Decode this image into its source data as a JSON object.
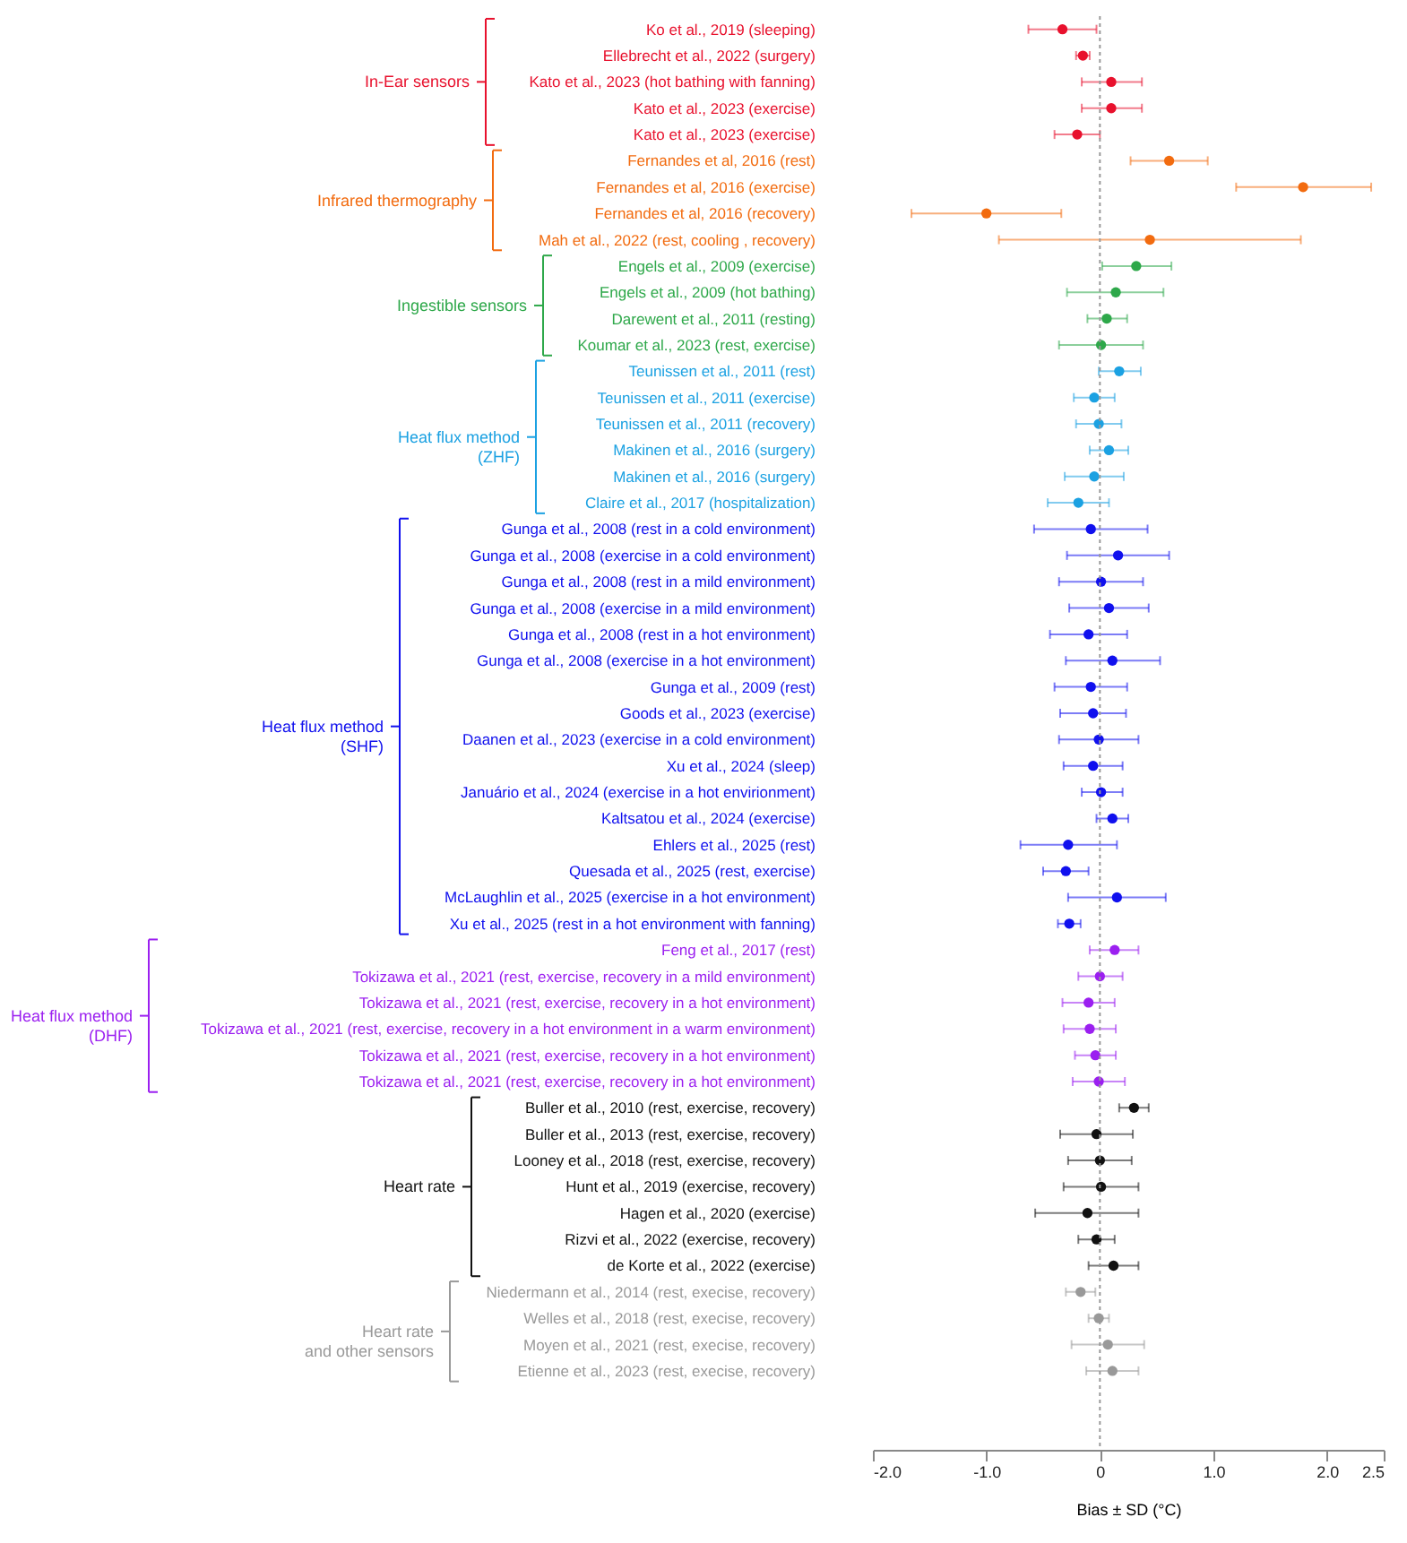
{
  "chart_data": {
    "type": "scatter",
    "orientation": "horizontal",
    "marker": "circle",
    "legend": "left",
    "xlabel": "Bias ± SD (°C)",
    "xlim": [
      -2.0,
      2.5
    ],
    "xticks": [
      {
        "value": -2,
        "label": "-2.0"
      },
      {
        "value": -1,
        "label": "-1.0"
      },
      0,
      {
        "value": 1,
        "label": "1.0"
      },
      {
        "value": 2,
        "label": "2.0"
      },
      2.5
    ],
    "ref_lines": [
      {
        "axis": "x",
        "value": 0,
        "color": "#999999",
        "line_style": "dotted"
      }
    ],
    "categories": [
      "Ko et al., 2019 (sleeping)",
      "Ellebrecht et al., 2022 (surgery)",
      "Kato et al., 2023 (hot bathing with fanning)",
      "Kato et al., 2023 (exercise)",
      "Kato et al., 2023 (exercise)",
      "Fernandes et al, 2016 (rest)",
      "Fernandes et al, 2016 (exercise)",
      "Fernandes et al, 2016 (recovery)",
      "Mah et al., 2022 (rest, cooling , recovery)",
      "Engels et al., 2009 (exercise)",
      "Engels et al., 2009 (hot bathing)",
      "Darewent et al., 2011 (resting)",
      "Koumar et al., 2023 (rest, exercise)",
      "Teunissen et al., 2011 (rest)",
      "Teunissen et al., 2011 (exercise)",
      "Teunissen et al., 2011 (recovery)",
      "Makinen et al., 2016 (surgery)",
      "Makinen et al., 2016 (surgery)",
      "Claire et al., 2017 (hospitalization)",
      "Gunga et al., 2008 (rest in a cold environment)",
      "Gunga et al., 2008 (exercise in a cold environment)",
      "Gunga et al., 2008 (rest in a mild environment)",
      "Gunga et al., 2008 (exercise in a mild environment)",
      "Gunga et al., 2008 (rest in a hot environment)",
      "Gunga et al., 2008 (exercise in a hot environment)",
      "Gunga et al., 2009 (rest)",
      "Goods et al., 2023 (exercise)",
      "Daanen et al., 2023 (exercise in a cold environment)",
      "Xu et al., 2024 (sleep)",
      "Januário et al., 2024 (exercise in a hot envirionment)",
      "Kaltsatou et al., 2024 (exercise)",
      "Ehlers et al., 2025 (rest)",
      "Quesada et al., 2025 (rest, exercise)",
      "McLaughlin et al., 2025 (exercise in a hot environment)",
      "Xu et al., 2025 (rest in a hot environment with fanning)",
      "Feng et al., 2017 (rest)",
      "Tokizawa et al., 2021 (rest, exercise, recovery in a mild environment)",
      "Tokizawa et al., 2021 (rest, exercise, recovery in a hot environment)",
      "Tokizawa et al., 2021 (rest, exercise, recovery in a hot environment in a warm environment)",
      "Tokizawa et al., 2021 (rest, exercise, recovery in a hot environment)",
      "Tokizawa et al., 2021 (rest, exercise, recovery in a hot environment)",
      "Buller et al., 2010 (rest, exercise, recovery)",
      "Buller et al., 2013 (rest, exercise, recovery)",
      "Looney et al., 2018 (rest, exercise, recovery)",
      "Hunt et al., 2019 (exercise, recovery)",
      "Hagen et al., 2020 (exercise)",
      "Rizvi et al., 2022 (exercise, recovery)",
      "de Korte et al., 2022 (exercise)",
      "Niedermann et al., 2014 (rest, execise, recovery)",
      "Welles et al., 2018 (rest, execise, recovery)",
      "Moyen et al., 2021 (rest, execise, recovery)",
      "Etienne et al., 2023 (rest, execise, recovery)"
    ],
    "series": [
      {
        "name": "In-Ear sensors",
        "color": "#e8112d",
        "values": [
          -0.33,
          -0.15,
          0.1,
          0.1,
          -0.2,
          null,
          null,
          null,
          null,
          null,
          null,
          null,
          null,
          null,
          null,
          null,
          null,
          null,
          null,
          null,
          null,
          null,
          null,
          null,
          null,
          null,
          null,
          null,
          null,
          null,
          null,
          null,
          null,
          null,
          null,
          null,
          null,
          null,
          null,
          null,
          null,
          null,
          null,
          null,
          null,
          null,
          null,
          null,
          null,
          null,
          null,
          null
        ],
        "errors": [
          [
            -0.63,
            -0.03
          ],
          [
            -0.21,
            -0.09
          ],
          [
            -0.16,
            0.37
          ],
          [
            -0.16,
            0.37
          ],
          [
            -0.4,
            0.0
          ],
          null,
          null,
          null,
          null,
          null,
          null,
          null,
          null,
          null,
          null,
          null,
          null,
          null,
          null,
          null,
          null,
          null,
          null,
          null,
          null,
          null,
          null,
          null,
          null,
          null,
          null,
          null,
          null,
          null,
          null,
          null,
          null,
          null,
          null,
          null,
          null,
          null,
          null,
          null,
          null,
          null,
          null,
          null,
          null,
          null,
          null,
          null
        ]
      },
      {
        "name": "Infrared thermography",
        "color": "#f26b0f",
        "values": [
          null,
          null,
          null,
          null,
          null,
          0.61,
          1.79,
          -1.0,
          0.44,
          null,
          null,
          null,
          null,
          null,
          null,
          null,
          null,
          null,
          null,
          null,
          null,
          null,
          null,
          null,
          null,
          null,
          null,
          null,
          null,
          null,
          null,
          null,
          null,
          null,
          null,
          null,
          null,
          null,
          null,
          null,
          null,
          null,
          null,
          null,
          null,
          null,
          null,
          null,
          null,
          null,
          null,
          null
        ],
        "errors": [
          null,
          null,
          null,
          null,
          null,
          [
            0.27,
            0.95
          ],
          [
            1.2,
            2.39
          ],
          [
            -1.66,
            -0.34
          ],
          [
            -0.89,
            1.77
          ],
          null,
          null,
          null,
          null,
          null,
          null,
          null,
          null,
          null,
          null,
          null,
          null,
          null,
          null,
          null,
          null,
          null,
          null,
          null,
          null,
          null,
          null,
          null,
          null,
          null,
          null,
          null,
          null,
          null,
          null,
          null,
          null,
          null,
          null,
          null,
          null,
          null,
          null,
          null,
          null,
          null,
          null,
          null
        ]
      },
      {
        "name": "Ingestible sensors",
        "color": "#2ea84a",
        "values": [
          null,
          null,
          null,
          null,
          null,
          null,
          null,
          null,
          null,
          0.32,
          0.14,
          0.06,
          0.01,
          null,
          null,
          null,
          null,
          null,
          null,
          null,
          null,
          null,
          null,
          null,
          null,
          null,
          null,
          null,
          null,
          null,
          null,
          null,
          null,
          null,
          null,
          null,
          null,
          null,
          null,
          null,
          null,
          null,
          null,
          null,
          null,
          null,
          null,
          null,
          null,
          null,
          null,
          null
        ],
        "errors": [
          null,
          null,
          null,
          null,
          null,
          null,
          null,
          null,
          null,
          [
            0.02,
            0.63
          ],
          [
            -0.29,
            0.56
          ],
          [
            -0.11,
            0.24
          ],
          [
            -0.36,
            0.38
          ],
          null,
          null,
          null,
          null,
          null,
          null,
          null,
          null,
          null,
          null,
          null,
          null,
          null,
          null,
          null,
          null,
          null,
          null,
          null,
          null,
          null,
          null,
          null,
          null,
          null,
          null,
          null,
          null,
          null,
          null,
          null,
          null,
          null,
          null,
          null,
          null,
          null,
          null,
          null
        ]
      },
      {
        "name": "Heat flux method\n(ZHF)",
        "color": "#1ba1e2",
        "values": [
          null,
          null,
          null,
          null,
          null,
          null,
          null,
          null,
          null,
          null,
          null,
          null,
          null,
          0.17,
          -0.05,
          -0.01,
          0.08,
          -0.05,
          -0.19,
          null,
          null,
          null,
          null,
          null,
          null,
          null,
          null,
          null,
          null,
          null,
          null,
          null,
          null,
          null,
          null,
          null,
          null,
          null,
          null,
          null,
          null,
          null,
          null,
          null,
          null,
          null,
          null,
          null,
          null,
          null,
          null,
          null
        ],
        "errors": [
          null,
          null,
          null,
          null,
          null,
          null,
          null,
          null,
          null,
          null,
          null,
          null,
          null,
          [
            -0.01,
            0.36
          ],
          [
            -0.23,
            0.13
          ],
          [
            -0.21,
            0.19
          ],
          [
            -0.09,
            0.25
          ],
          [
            -0.31,
            0.21
          ],
          [
            -0.46,
            0.08
          ],
          null,
          null,
          null,
          null,
          null,
          null,
          null,
          null,
          null,
          null,
          null,
          null,
          null,
          null,
          null,
          null,
          null,
          null,
          null,
          null,
          null,
          null,
          null,
          null,
          null,
          null,
          null,
          null,
          null,
          null,
          null,
          null,
          null
        ]
      },
      {
        "name": "Heat flux method\n(SHF)",
        "color": "#1010ee",
        "values": [
          null,
          null,
          null,
          null,
          null,
          null,
          null,
          null,
          null,
          null,
          null,
          null,
          null,
          null,
          null,
          null,
          null,
          null,
          null,
          -0.08,
          0.16,
          0.01,
          0.08,
          -0.1,
          0.11,
          -0.08,
          -0.06,
          -0.01,
          -0.06,
          0.01,
          0.11,
          -0.28,
          -0.3,
          0.15,
          -0.27,
          null,
          null,
          null,
          null,
          null,
          null,
          null,
          null,
          null,
          null,
          null,
          null,
          null,
          null,
          null,
          null,
          null
        ],
        "errors": [
          null,
          null,
          null,
          null,
          null,
          null,
          null,
          null,
          null,
          null,
          null,
          null,
          null,
          null,
          null,
          null,
          null,
          null,
          null,
          [
            -0.58,
            0.42
          ],
          [
            -0.29,
            0.61
          ],
          [
            -0.36,
            0.38
          ],
          [
            -0.27,
            0.43
          ],
          [
            -0.44,
            0.24
          ],
          [
            -0.3,
            0.53
          ],
          [
            -0.4,
            0.24
          ],
          [
            -0.35,
            0.23
          ],
          [
            -0.36,
            0.34
          ],
          [
            -0.32,
            0.2
          ],
          [
            -0.16,
            0.2
          ],
          [
            -0.03,
            0.25
          ],
          [
            -0.7,
            0.15
          ],
          [
            -0.5,
            -0.1
          ],
          [
            -0.28,
            0.58
          ],
          [
            -0.37,
            -0.17
          ],
          null,
          null,
          null,
          null,
          null,
          null,
          null,
          null,
          null,
          null,
          null,
          null,
          null,
          null,
          null,
          null,
          null
        ]
      },
      {
        "name": "Heat flux method\n(DHF)",
        "color": "#9b1ff0",
        "values": [
          null,
          null,
          null,
          null,
          null,
          null,
          null,
          null,
          null,
          null,
          null,
          null,
          null,
          null,
          null,
          null,
          null,
          null,
          null,
          null,
          null,
          null,
          null,
          null,
          null,
          null,
          null,
          null,
          null,
          null,
          null,
          null,
          null,
          null,
          null,
          0.13,
          0.0,
          -0.1,
          -0.09,
          -0.04,
          -0.01,
          null,
          null,
          null,
          null,
          null,
          null,
          null,
          null,
          null,
          null,
          null
        ],
        "errors": [
          null,
          null,
          null,
          null,
          null,
          null,
          null,
          null,
          null,
          null,
          null,
          null,
          null,
          null,
          null,
          null,
          null,
          null,
          null,
          null,
          null,
          null,
          null,
          null,
          null,
          null,
          null,
          null,
          null,
          null,
          null,
          null,
          null,
          null,
          null,
          [
            -0.09,
            0.34
          ],
          [
            -0.19,
            0.2
          ],
          [
            -0.33,
            0.13
          ],
          [
            -0.32,
            0.14
          ],
          [
            -0.22,
            0.14
          ],
          [
            -0.24,
            0.22
          ],
          null,
          null,
          null,
          null,
          null,
          null,
          null,
          null,
          null,
          null,
          null
        ]
      },
      {
        "name": "Heart rate",
        "color": "#111111",
        "values": [
          null,
          null,
          null,
          null,
          null,
          null,
          null,
          null,
          null,
          null,
          null,
          null,
          null,
          null,
          null,
          null,
          null,
          null,
          null,
          null,
          null,
          null,
          null,
          null,
          null,
          null,
          null,
          null,
          null,
          null,
          null,
          null,
          null,
          null,
          null,
          null,
          null,
          null,
          null,
          null,
          null,
          0.3,
          -0.03,
          0.0,
          0.01,
          -0.11,
          -0.03,
          0.12,
          null,
          null,
          null,
          null
        ],
        "errors": [
          null,
          null,
          null,
          null,
          null,
          null,
          null,
          null,
          null,
          null,
          null,
          null,
          null,
          null,
          null,
          null,
          null,
          null,
          null,
          null,
          null,
          null,
          null,
          null,
          null,
          null,
          null,
          null,
          null,
          null,
          null,
          null,
          null,
          null,
          null,
          null,
          null,
          null,
          null,
          null,
          null,
          [
            0.17,
            0.43
          ],
          [
            -0.35,
            0.29
          ],
          [
            -0.28,
            0.28
          ],
          [
            -0.32,
            0.34
          ],
          [
            -0.57,
            0.34
          ],
          [
            -0.19,
            0.13
          ],
          [
            -0.1,
            0.34
          ],
          null,
          null,
          null,
          null
        ]
      },
      {
        "name": "Heart rate\nand other sensors",
        "color": "#999999",
        "values": [
          null,
          null,
          null,
          null,
          null,
          null,
          null,
          null,
          null,
          null,
          null,
          null,
          null,
          null,
          null,
          null,
          null,
          null,
          null,
          null,
          null,
          null,
          null,
          null,
          null,
          null,
          null,
          null,
          null,
          null,
          null,
          null,
          null,
          null,
          null,
          null,
          null,
          null,
          null,
          null,
          null,
          null,
          null,
          null,
          null,
          null,
          null,
          null,
          -0.17,
          -0.01,
          0.07,
          0.11
        ],
        "errors": [
          null,
          null,
          null,
          null,
          null,
          null,
          null,
          null,
          null,
          null,
          null,
          null,
          null,
          null,
          null,
          null,
          null,
          null,
          null,
          null,
          null,
          null,
          null,
          null,
          null,
          null,
          null,
          null,
          null,
          null,
          null,
          null,
          null,
          null,
          null,
          null,
          null,
          null,
          null,
          null,
          null,
          null,
          null,
          null,
          null,
          null,
          null,
          null,
          [
            -0.3,
            -0.04
          ],
          [
            -0.1,
            0.08
          ],
          [
            -0.25,
            0.39
          ],
          [
            -0.12,
            0.34
          ]
        ]
      }
    ]
  }
}
